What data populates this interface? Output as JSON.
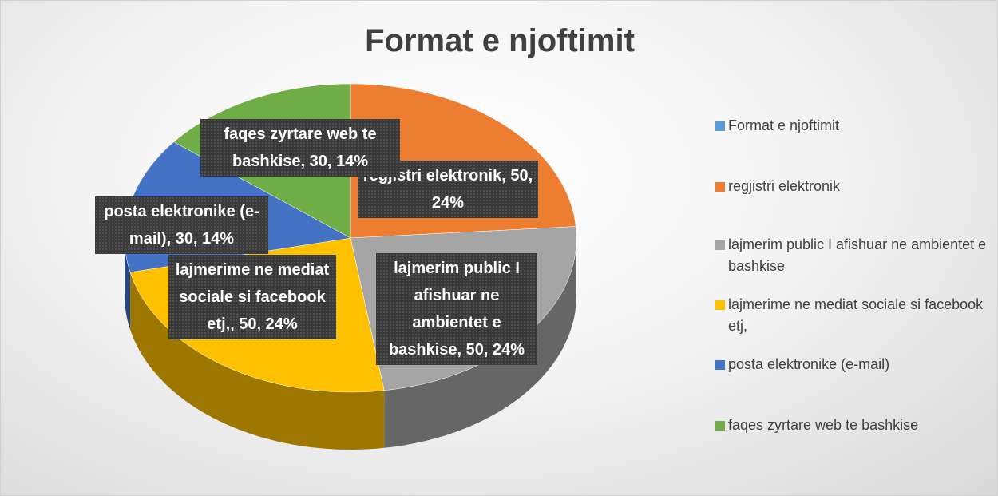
{
  "chart_data": {
    "type": "pie",
    "title": "Format e njoftimit",
    "categories": [
      "Format e njoftimit",
      "regjistri elektronik",
      " lajmerim public I afishuar ne ambientet e bashkise",
      " lajmerime ne mediat sociale si facebook etj,",
      " posta elektronike (e-mail)",
      "faqes zyrtare web te bashkise"
    ],
    "values": [
      null,
      50,
      50,
      50,
      30,
      30
    ],
    "value_labels": [
      null,
      "regjistri elektronik, 50, 24%",
      "lajmerim public I afishuar ne ambientet e bashkise, 50, 24%",
      "lajmerime ne mediat sociale si facebook etj,, 50, 24%",
      "posta elektronike (e-mail), 30, 14%",
      "faqes zyrtare web te bashkise, 30, 14%"
    ],
    "colors": [
      "#5b9bd5",
      "#ed7d31",
      "#a5a5a5",
      "#ffc000",
      "#4472c4",
      "#70ad47"
    ],
    "legend": "right"
  }
}
